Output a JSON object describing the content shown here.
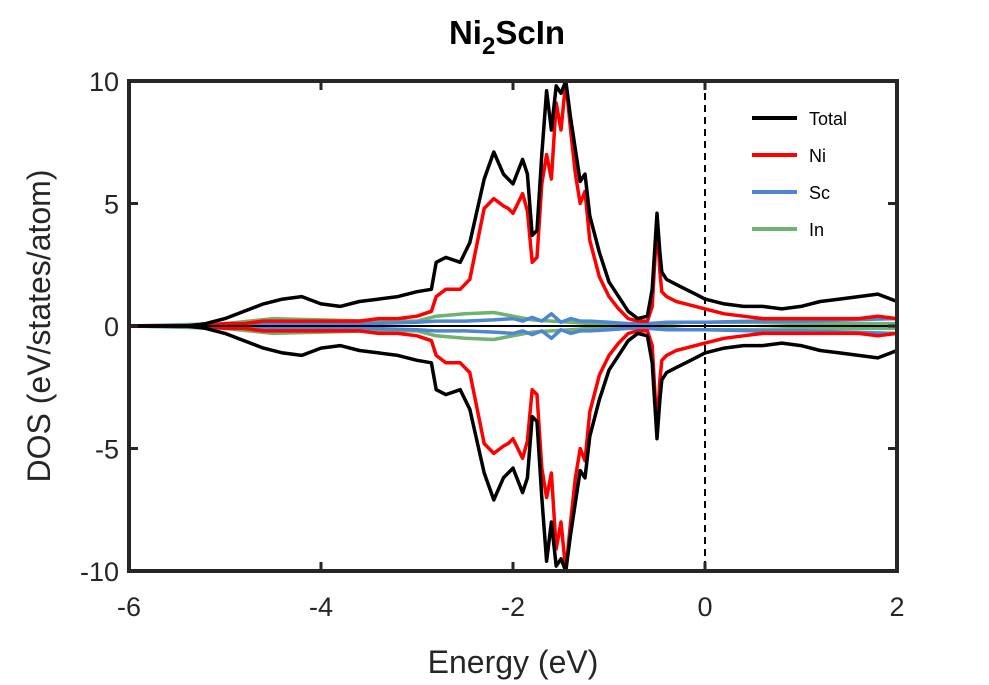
{
  "chart_data": {
    "type": "line",
    "title": {
      "main": "Ni",
      "sub": "2",
      "tail": "ScIn"
    },
    "xlabel": "Energy (eV)",
    "ylabel": "DOS (eV/states/atom)",
    "xlim": [
      -6,
      2
    ],
    "ylim": [
      -10,
      10
    ],
    "xticks": [
      -6,
      -4,
      -2,
      0,
      2
    ],
    "xtick_labels": [
      "-6",
      "-4",
      "-2",
      "0",
      "2"
    ],
    "yticks": [
      -10,
      -5,
      0,
      5,
      10
    ],
    "ytick_labels": [
      "-10",
      "-5",
      "0",
      "5",
      "10"
    ],
    "grid": false,
    "legend_position": "top-right",
    "fermi_level": 0,
    "mirror_spin_down": true,
    "series": [
      {
        "name": "Total",
        "color": "#000000",
        "x": [
          -6.0,
          -5.4,
          -5.2,
          -5.0,
          -4.8,
          -4.6,
          -4.4,
          -4.2,
          -4.0,
          -3.8,
          -3.6,
          -3.4,
          -3.2,
          -3.0,
          -2.85,
          -2.8,
          -2.7,
          -2.55,
          -2.45,
          -2.3,
          -2.2,
          -2.1,
          -2.05,
          -2.0,
          -1.9,
          -1.85,
          -1.8,
          -1.75,
          -1.7,
          -1.65,
          -1.6,
          -1.55,
          -1.5,
          -1.45,
          -1.4,
          -1.35,
          -1.3,
          -1.25,
          -1.2,
          -1.1,
          -1.0,
          -0.9,
          -0.8,
          -0.7,
          -0.6,
          -0.55,
          -0.5,
          -0.47,
          -0.45,
          -0.4,
          -0.3,
          -0.2,
          -0.1,
          0.0,
          0.2,
          0.4,
          0.6,
          0.8,
          1.0,
          1.2,
          1.4,
          1.6,
          1.8,
          2.0
        ],
        "values": [
          0.0,
          0.0,
          0.1,
          0.3,
          0.6,
          0.9,
          1.1,
          1.2,
          0.9,
          0.8,
          1.0,
          1.1,
          1.2,
          1.4,
          1.5,
          2.6,
          2.8,
          2.6,
          3.4,
          6.0,
          7.1,
          6.2,
          6.0,
          5.8,
          6.8,
          6.2,
          3.7,
          3.9,
          7.0,
          9.6,
          8.0,
          9.8,
          9.5,
          10.0,
          8.5,
          7.2,
          5.9,
          6.2,
          4.5,
          3.0,
          1.8,
          1.2,
          0.6,
          0.3,
          0.4,
          1.5,
          4.6,
          3.0,
          2.2,
          1.9,
          1.7,
          1.5,
          1.3,
          1.1,
          0.9,
          0.8,
          0.8,
          0.7,
          0.8,
          1.0,
          1.1,
          1.2,
          1.3,
          1.0
        ]
      },
      {
        "name": "Ni",
        "color": "#ff0000",
        "x": [
          -6.0,
          -5.4,
          -5.2,
          -5.0,
          -4.8,
          -4.6,
          -4.4,
          -4.2,
          -4.0,
          -3.8,
          -3.6,
          -3.4,
          -3.2,
          -3.0,
          -2.85,
          -2.8,
          -2.7,
          -2.55,
          -2.45,
          -2.3,
          -2.2,
          -2.1,
          -2.05,
          -2.0,
          -1.9,
          -1.85,
          -1.8,
          -1.75,
          -1.7,
          -1.65,
          -1.6,
          -1.55,
          -1.5,
          -1.45,
          -1.4,
          -1.35,
          -1.3,
          -1.25,
          -1.2,
          -1.1,
          -1.0,
          -0.9,
          -0.8,
          -0.7,
          -0.6,
          -0.55,
          -0.5,
          -0.47,
          -0.45,
          -0.4,
          -0.3,
          -0.2,
          -0.1,
          0.0,
          0.2,
          0.4,
          0.6,
          0.8,
          1.0,
          1.2,
          1.4,
          1.6,
          1.8,
          2.0
        ],
        "values": [
          0.0,
          0.0,
          0.0,
          0.1,
          0.1,
          0.2,
          0.2,
          0.2,
          0.2,
          0.2,
          0.2,
          0.3,
          0.3,
          0.4,
          0.6,
          1.2,
          1.5,
          1.5,
          1.9,
          4.8,
          5.2,
          4.9,
          4.8,
          4.6,
          5.4,
          4.7,
          2.6,
          2.8,
          5.8,
          7.0,
          6.0,
          9.1,
          8.0,
          10.0,
          8.0,
          6.2,
          5.0,
          5.5,
          3.5,
          2.0,
          1.2,
          0.7,
          0.3,
          0.2,
          0.2,
          0.8,
          4.2,
          2.2,
          1.4,
          1.2,
          1.0,
          0.9,
          0.8,
          0.7,
          0.5,
          0.4,
          0.3,
          0.3,
          0.3,
          0.3,
          0.3,
          0.3,
          0.4,
          0.3
        ]
      },
      {
        "name": "Sc",
        "color": "#4e86d4",
        "x": [
          -6.0,
          -5.0,
          -4.5,
          -4.0,
          -3.5,
          -3.0,
          -2.8,
          -2.5,
          -2.2,
          -2.0,
          -1.9,
          -1.8,
          -1.7,
          -1.6,
          -1.5,
          -1.4,
          -1.3,
          -1.2,
          -1.0,
          -0.8,
          -0.6,
          -0.4,
          -0.2,
          0.0,
          0.5,
          1.0,
          1.5,
          2.0
        ],
        "values": [
          0.0,
          0.05,
          0.1,
          0.1,
          0.1,
          0.15,
          0.2,
          0.2,
          0.25,
          0.3,
          0.2,
          0.35,
          0.2,
          0.5,
          0.15,
          0.3,
          0.2,
          0.2,
          0.15,
          0.1,
          0.1,
          0.15,
          0.15,
          0.15,
          0.2,
          0.2,
          0.25,
          0.3
        ]
      },
      {
        "name": "In",
        "color": "#70b26f",
        "x": [
          -6.0,
          -5.0,
          -4.5,
          -4.0,
          -3.5,
          -3.0,
          -2.8,
          -2.5,
          -2.2,
          -2.0,
          -1.8,
          -1.6,
          -1.4,
          -1.2,
          -1.0,
          -0.8,
          -0.6,
          -0.4,
          -0.2,
          0.0,
          0.5,
          1.0,
          1.5,
          2.0
        ],
        "values": [
          0.0,
          0.1,
          0.3,
          0.25,
          0.2,
          0.2,
          0.4,
          0.5,
          0.55,
          0.4,
          0.25,
          0.2,
          0.15,
          0.1,
          0.1,
          0.1,
          0.05,
          0.1,
          0.15,
          0.15,
          0.15,
          0.1,
          0.1,
          0.1
        ]
      }
    ]
  }
}
